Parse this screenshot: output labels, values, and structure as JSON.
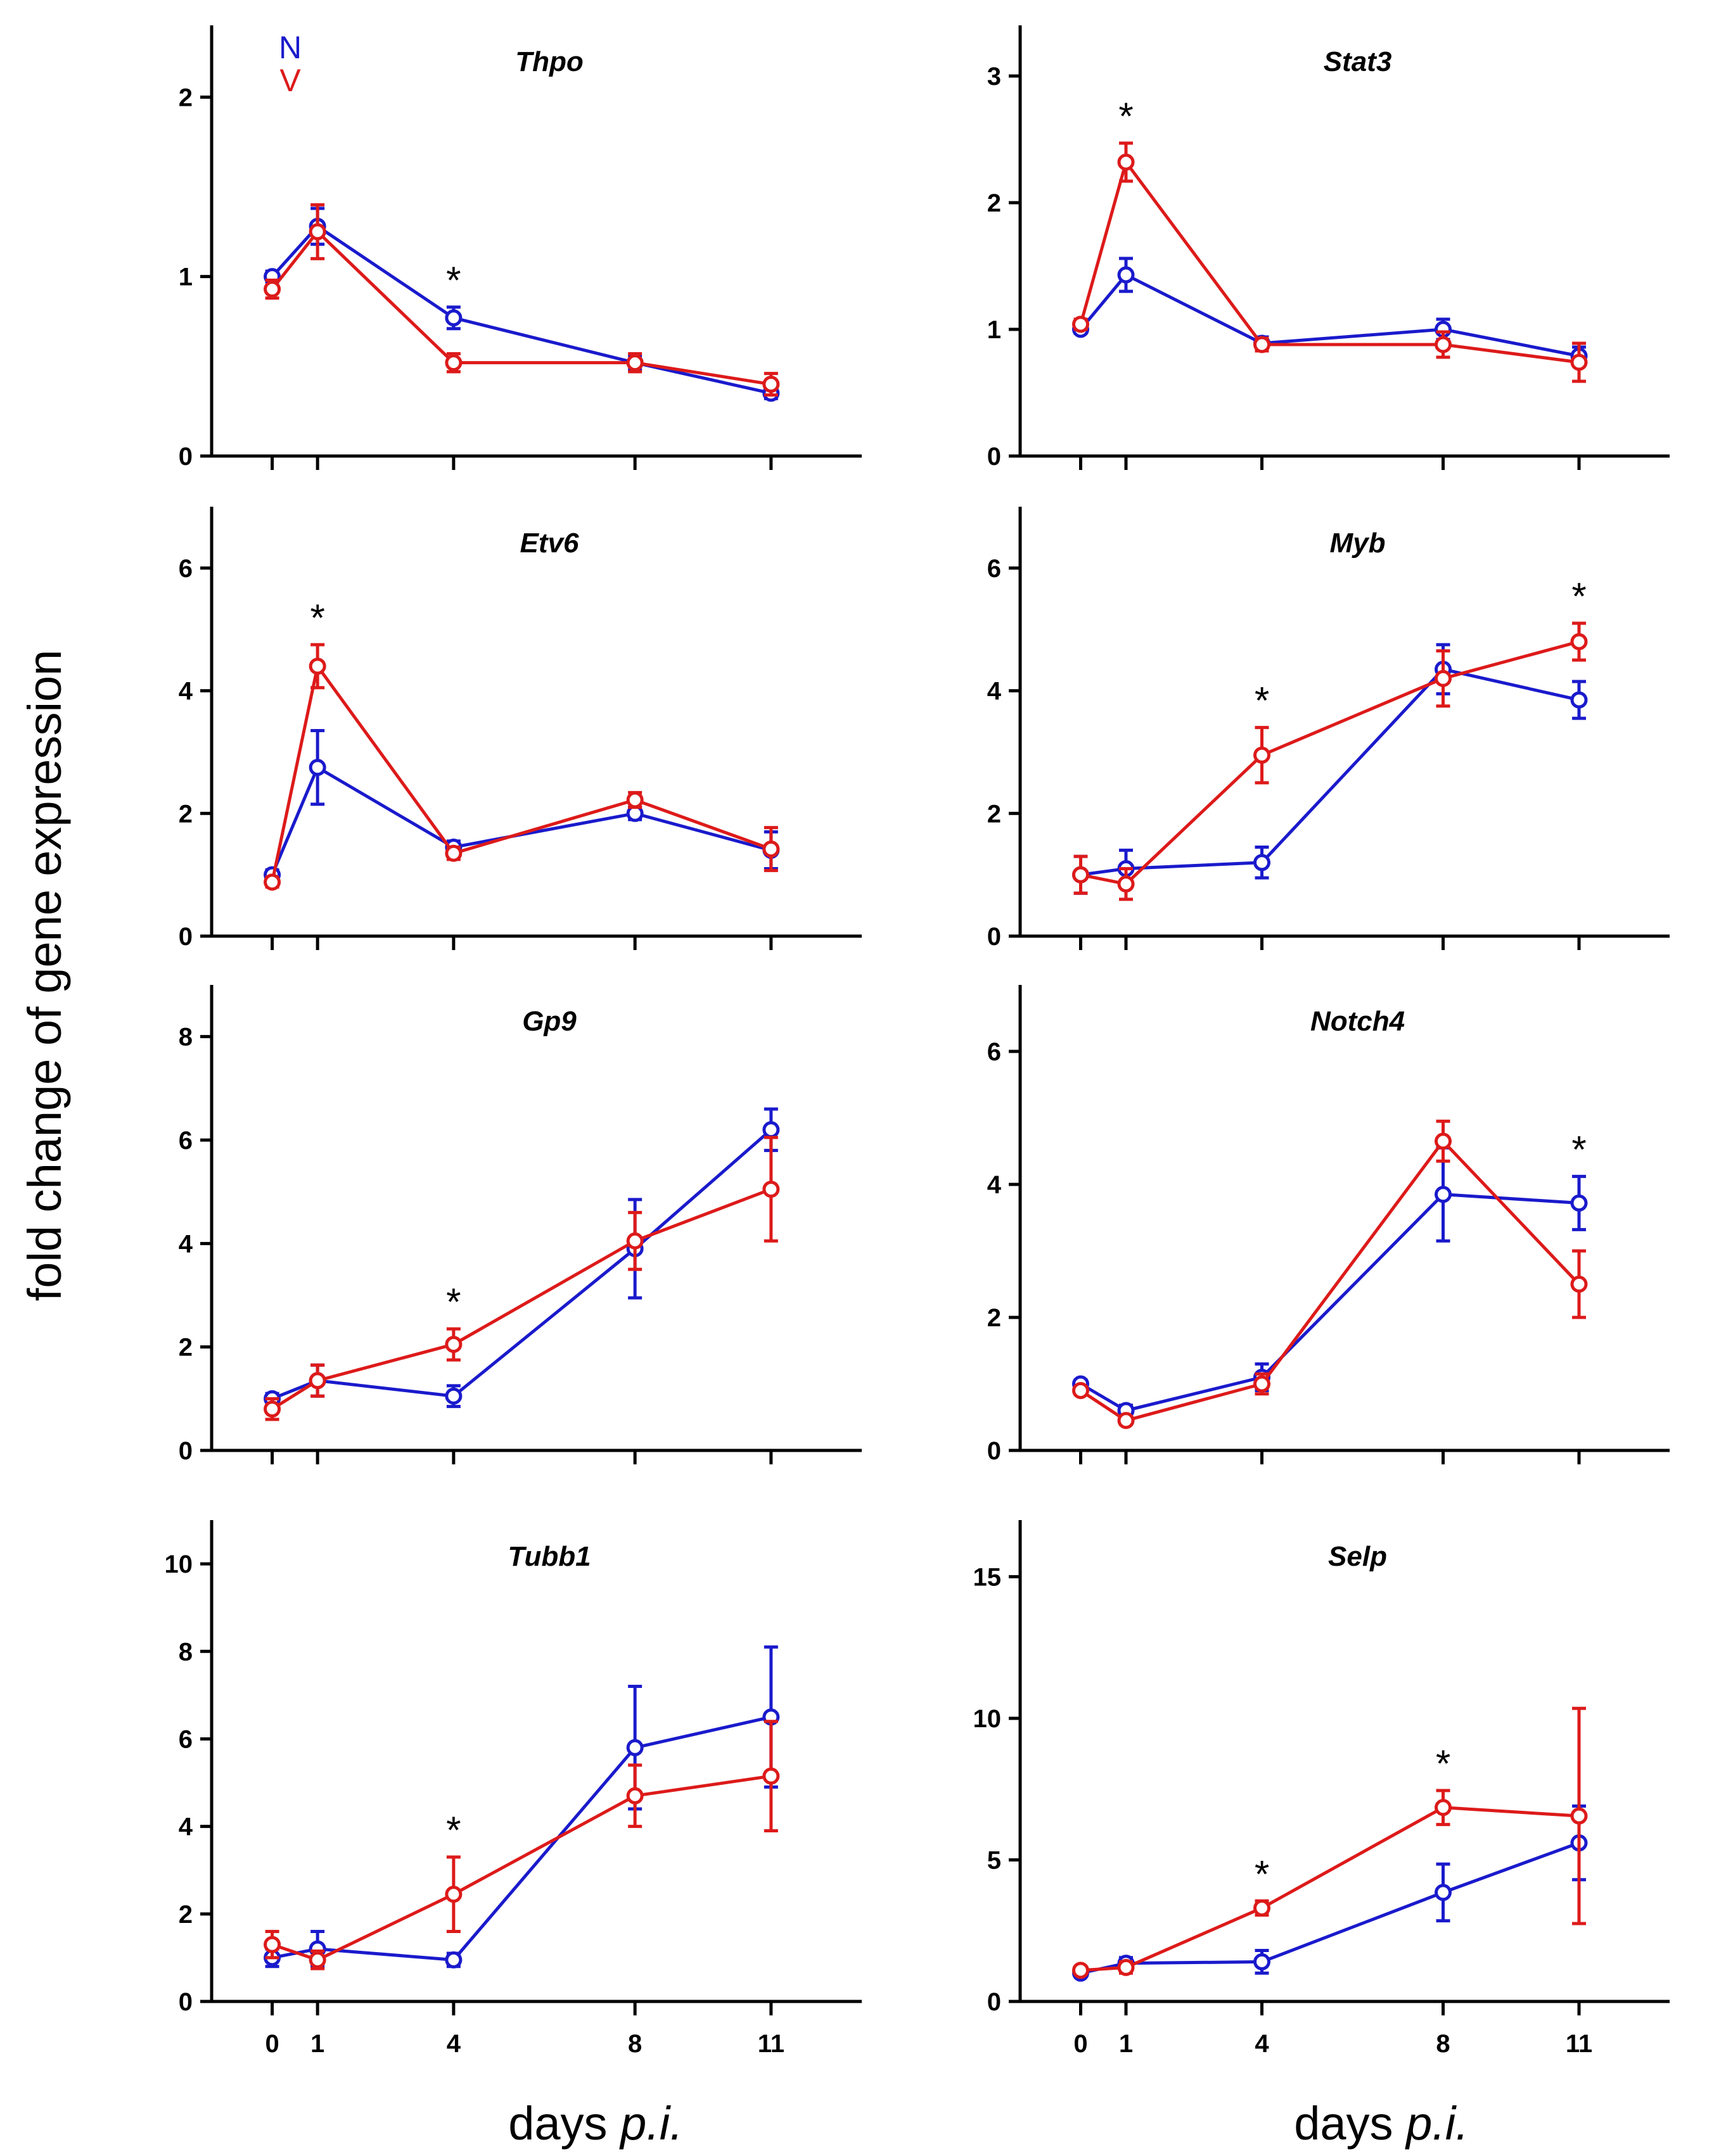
{
  "chart_data": {
    "type": "line",
    "ylabel": "fold change of gene expression",
    "xlabel": "days",
    "xlabel_italic": "p.i.",
    "x": [
      0,
      1,
      4,
      8,
      11
    ],
    "x_tick_labels": [
      "0",
      "1",
      "4",
      "8",
      "11"
    ],
    "xlim": [
      -1,
      13
    ],
    "legend": [
      {
        "name": "N",
        "color": "#1a1acc"
      },
      {
        "name": "V",
        "color": "#dd1a1a"
      }
    ],
    "panels": [
      {
        "title": "Thpo",
        "ylim": [
          0,
          2.4
        ],
        "yticks": [
          0,
          1,
          2
        ],
        "series": [
          {
            "name": "N",
            "values": [
              1.0,
              1.28,
              0.77,
              0.52,
              0.35
            ],
            "errors": [
              0.03,
              0.1,
              0.06,
              0.04,
              0.03
            ]
          },
          {
            "name": "V",
            "values": [
              0.93,
              1.25,
              0.52,
              0.52,
              0.4
            ],
            "errors": [
              0.05,
              0.15,
              0.05,
              0.05,
              0.06
            ]
          }
        ],
        "significant": [
          4
        ]
      },
      {
        "title": "Stat3",
        "ylim": [
          0,
          3.4
        ],
        "yticks": [
          0,
          1,
          2,
          3
        ],
        "series": [
          {
            "name": "N",
            "values": [
              1.0,
              1.43,
              0.89,
              1.0,
              0.79
            ],
            "errors": [
              0.03,
              0.13,
              0.05,
              0.08,
              0.07
            ]
          },
          {
            "name": "V",
            "values": [
              1.04,
              2.32,
              0.88,
              0.88,
              0.74
            ],
            "errors": [
              0.04,
              0.15,
              0.05,
              0.1,
              0.15
            ]
          }
        ],
        "significant": [
          1
        ]
      },
      {
        "title": "Etv6",
        "ylim": [
          0,
          7
        ],
        "yticks": [
          0,
          2,
          4,
          6
        ],
        "series": [
          {
            "name": "N",
            "values": [
              1.0,
              2.75,
              1.45,
              2.0,
              1.4
            ],
            "errors": [
              0.08,
              0.6,
              0.1,
              0.1,
              0.3
            ]
          },
          {
            "name": "V",
            "values": [
              0.88,
              4.4,
              1.35,
              2.22,
              1.42
            ],
            "errors": [
              0.08,
              0.35,
              0.1,
              0.12,
              0.35
            ]
          }
        ],
        "significant": [
          1
        ]
      },
      {
        "title": "Myb",
        "ylim": [
          0,
          7
        ],
        "yticks": [
          0,
          2,
          4,
          6
        ],
        "series": [
          {
            "name": "N",
            "values": [
              1.0,
              1.1,
              1.2,
              4.35,
              3.85
            ],
            "errors": [
              0.3,
              0.3,
              0.25,
              0.4,
              0.3
            ]
          },
          {
            "name": "V",
            "values": [
              1.0,
              0.85,
              2.95,
              4.2,
              4.8
            ],
            "errors": [
              0.3,
              0.25,
              0.45,
              0.45,
              0.3
            ]
          }
        ],
        "significant": [
          4,
          11
        ]
      },
      {
        "title": "Gp9",
        "ylim": [
          0,
          9
        ],
        "yticks": [
          0,
          2,
          4,
          6,
          8
        ],
        "series": [
          {
            "name": "N",
            "values": [
              1.0,
              1.35,
              1.05,
              3.9,
              6.2
            ],
            "errors": [
              0.1,
              0.3,
              0.2,
              0.95,
              0.4
            ]
          },
          {
            "name": "V",
            "values": [
              0.8,
              1.35,
              2.05,
              4.05,
              5.05
            ],
            "errors": [
              0.2,
              0.3,
              0.3,
              0.55,
              1.0
            ]
          }
        ],
        "significant": [
          4
        ]
      },
      {
        "title": "Notch4",
        "ylim": [
          0,
          7
        ],
        "yticks": [
          0,
          2,
          4,
          6
        ],
        "series": [
          {
            "name": "N",
            "values": [
              1.0,
              0.6,
              1.1,
              3.85,
              3.72
            ],
            "errors": [
              0.06,
              0.08,
              0.2,
              0.7,
              0.4
            ]
          },
          {
            "name": "V",
            "values": [
              0.9,
              0.45,
              1.0,
              4.65,
              2.5
            ],
            "errors": [
              0.06,
              0.06,
              0.15,
              0.3,
              0.5
            ]
          }
        ],
        "significant": [
          11
        ]
      },
      {
        "title": "Tubb1",
        "ylim": [
          0,
          11
        ],
        "yticks": [
          0,
          2,
          4,
          6,
          8,
          10
        ],
        "series": [
          {
            "name": "N",
            "values": [
              1.0,
              1.2,
              0.95,
              5.8,
              6.5
            ],
            "errors": [
              0.2,
              0.4,
              0.15,
              1.4,
              1.6
            ]
          },
          {
            "name": "V",
            "values": [
              1.3,
              0.95,
              2.45,
              4.7,
              5.15
            ],
            "errors": [
              0.3,
              0.2,
              0.85,
              0.7,
              1.25
            ]
          }
        ],
        "significant": [
          4
        ]
      },
      {
        "title": "Selp",
        "ylim": [
          0,
          17
        ],
        "yticks": [
          0,
          5,
          10,
          15
        ],
        "series": [
          {
            "name": "N",
            "values": [
              1.0,
              1.35,
              1.4,
              3.85,
              5.6
            ],
            "errors": [
              0.1,
              0.2,
              0.4,
              1.0,
              1.3
            ]
          },
          {
            "name": "V",
            "values": [
              1.1,
              1.2,
              3.3,
              6.85,
              6.55
            ],
            "errors": [
              0.1,
              0.2,
              0.25,
              0.6,
              3.8
            ]
          }
        ],
        "significant": [
          4,
          8
        ]
      }
    ]
  }
}
